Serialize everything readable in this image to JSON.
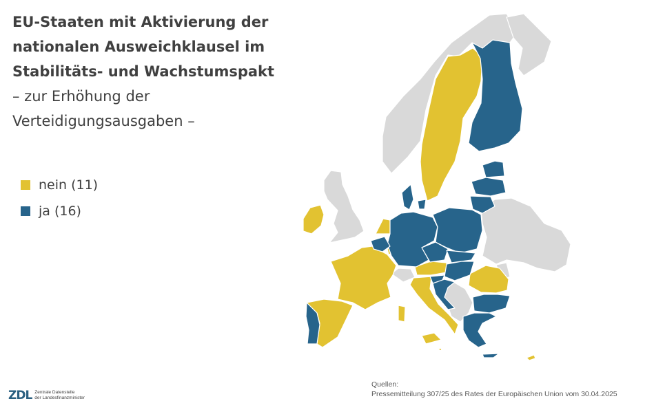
{
  "title": {
    "bold_lines": [
      "EU-Staaten mit Aktivierung der",
      "nationalen Ausweichklausel im",
      "Stabilitäts- und Wachstumspakt"
    ],
    "sub_lines": [
      "– zur Erhöhung der",
      "Verteidigungsausgaben –"
    ]
  },
  "legend": [
    {
      "label": "nein (11)",
      "color": "#e2c231"
    },
    {
      "label": "ja (16)",
      "color": "#27648b"
    }
  ],
  "colors": {
    "nein": "#e2c231",
    "ja": "#27648b",
    "non_eu": "#d9d9d9",
    "border": "#ffffff"
  },
  "map": {
    "nein": [
      "Irland",
      "Niederlande",
      "Frankreich",
      "Spanien",
      "Italien",
      "Österreich",
      "Schweden",
      "Rumänien",
      "Malta",
      "Luxemburg",
      "Zypern"
    ],
    "ja": [
      "Portugal",
      "Belgien",
      "Deutschland",
      "Dänemark",
      "Polen",
      "Tschechien",
      "Slowakei",
      "Ungarn",
      "Slowenien",
      "Kroatien",
      "Bulgarien",
      "Griechenland",
      "Finnland",
      "Estland",
      "Lettland",
      "Litauen"
    ]
  },
  "sources": {
    "heading": "Quellen:",
    "text": "Pressemitteilung 307/25 des Rates der Europäischen Union vom 30.04.2025"
  },
  "logo": {
    "mark": "ZDL",
    "line1": "Zentrale Datenstelle",
    "line2": "der Landesfinanzminister"
  }
}
